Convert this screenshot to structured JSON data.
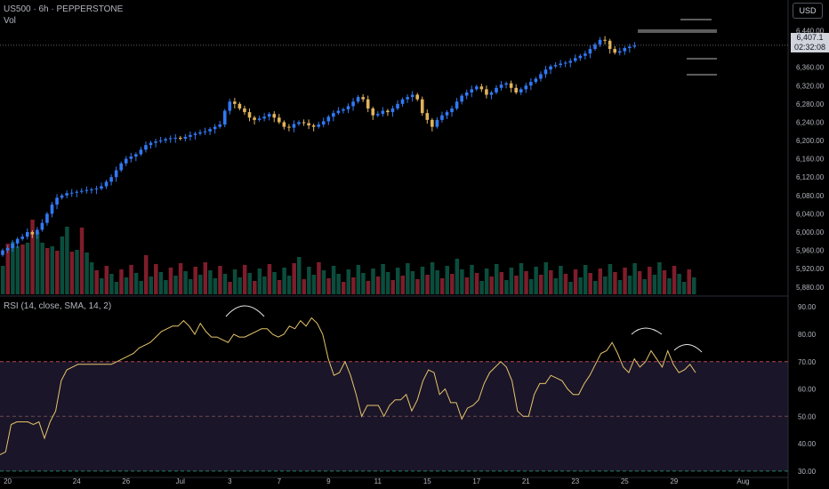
{
  "header": {
    "symbol_line": "US500 · 6h · PEPPERSTONE",
    "volume_label": "Vol",
    "currency": "USD",
    "last_price": "6,407.1",
    "countdown": "02:32:08"
  },
  "rsi": {
    "label": "RSI (14, close, SMA, 14, 2)"
  },
  "colors": {
    "up_candle": "#3179f5",
    "down_candle": "#e0b35c",
    "vol_up": "#0b4d3d",
    "vol_down": "#7e1d2b",
    "rsi_line": "#e6c46c",
    "rsi_band": "#1a1528",
    "upper_dashed": "#b24656",
    "mid_dashed": "#6b4a4f",
    "lower_dashed": "#22805e",
    "annotation": "#e8e8e8"
  },
  "chart_data": [
    {
      "type": "candlestick",
      "title": "US500 · 6h · PEPPERSTONE",
      "price_axis_ticks": [
        "6,440.00",
        "6,400.00",
        "6,360.00",
        "6,320.00",
        "6,280.00",
        "6,240.00",
        "6,200.00",
        "6,160.00",
        "6,120.00",
        "6,080.00",
        "6,040.00",
        "6,000.00",
        "5,960.00",
        "5,920.00",
        "5,880.00"
      ],
      "price_tick_values": [
        6440,
        6400,
        6360,
        6320,
        6280,
        6240,
        6200,
        6160,
        6120,
        6080,
        6040,
        6000,
        5960,
        5920,
        5880
      ],
      "ylim": [
        5866,
        6472
      ],
      "x_axis_ticks": [
        "20",
        "24",
        "26",
        "Jul",
        "3",
        "7",
        "9",
        "11",
        "15",
        "17",
        "21",
        "23",
        "25",
        "29",
        "Aug"
      ],
      "x_tick_bars": [
        1,
        15,
        25,
        36,
        46,
        56,
        66,
        76,
        86,
        96,
        106,
        116,
        126,
        136,
        150
      ],
      "last_price": 6407.1,
      "close": [
        5960,
        5965,
        5975,
        5985,
        5990,
        6000,
        5995,
        6005,
        6020,
        6040,
        6060,
        6075,
        6080,
        6085,
        6086,
        6088,
        6090,
        6092,
        6093,
        6095,
        6100,
        6110,
        6120,
        6135,
        6150,
        6160,
        6165,
        6170,
        6180,
        6190,
        6195,
        6198,
        6200,
        6203,
        6205,
        6206,
        6204,
        6208,
        6212,
        6215,
        6218,
        6220,
        6225,
        6230,
        6235,
        6265,
        6285,
        6280,
        6270,
        6262,
        6250,
        6245,
        6248,
        6252,
        6258,
        6250,
        6240,
        6230,
        6228,
        6236,
        6240,
        6238,
        6233,
        6230,
        6235,
        6242,
        6252,
        6260,
        6265,
        6268,
        6275,
        6285,
        6295,
        6290,
        6270,
        6255,
        6258,
        6265,
        6262,
        6270,
        6280,
        6290,
        6295,
        6300,
        6290,
        6260,
        6245,
        6230,
        6245,
        6255,
        6262,
        6270,
        6285,
        6298,
        6305,
        6312,
        6318,
        6312,
        6300,
        6305,
        6315,
        6322,
        6325,
        6315,
        6305,
        6312,
        6320,
        6328,
        6335,
        6345,
        6355,
        6362,
        6365,
        6368,
        6370,
        6374,
        6380,
        6385,
        6390,
        6400,
        6410,
        6420,
        6418,
        6400,
        6392,
        6395,
        6402,
        6405,
        6407.1
      ],
      "volume_bars": 141,
      "rsi_axis_ticks": [
        "90.00",
        "80.00",
        "70.00",
        "60.00",
        "50.00",
        "40.00",
        "30.00"
      ],
      "rsi_tick_values": [
        90,
        80,
        70,
        60,
        50,
        40,
        30
      ],
      "rsi_ylim": [
        28,
        93
      ],
      "rsi_levels": {
        "upper": 70,
        "middle": 50,
        "lower": 30
      },
      "rsi_values": [
        36,
        37,
        47,
        48,
        48,
        48,
        47,
        48,
        42,
        48,
        52,
        63,
        67,
        68,
        69,
        69,
        69,
        69,
        69,
        69,
        69,
        70,
        71,
        72,
        73,
        75,
        76,
        77,
        79,
        81,
        82,
        83,
        83,
        85,
        83,
        80,
        84,
        81,
        79,
        79,
        78,
        77,
        80,
        79,
        79,
        80,
        81,
        82,
        82,
        80,
        79,
        80,
        83,
        82,
        85,
        83,
        86,
        84,
        80,
        71,
        65,
        66,
        70,
        65,
        58,
        50,
        54,
        54,
        54,
        50,
        54,
        56,
        56,
        58,
        52,
        56,
        63,
        67,
        66,
        58,
        60,
        55,
        55,
        49,
        53,
        54,
        56,
        62,
        66,
        68,
        70,
        68,
        63,
        52,
        50,
        50,
        58,
        62,
        62,
        65,
        64,
        63,
        60,
        58,
        58,
        62,
        65,
        69,
        73,
        74,
        77,
        73,
        68,
        66,
        71,
        68,
        70,
        74,
        71,
        68,
        74,
        69,
        66,
        67,
        69,
        66
      ]
    }
  ]
}
